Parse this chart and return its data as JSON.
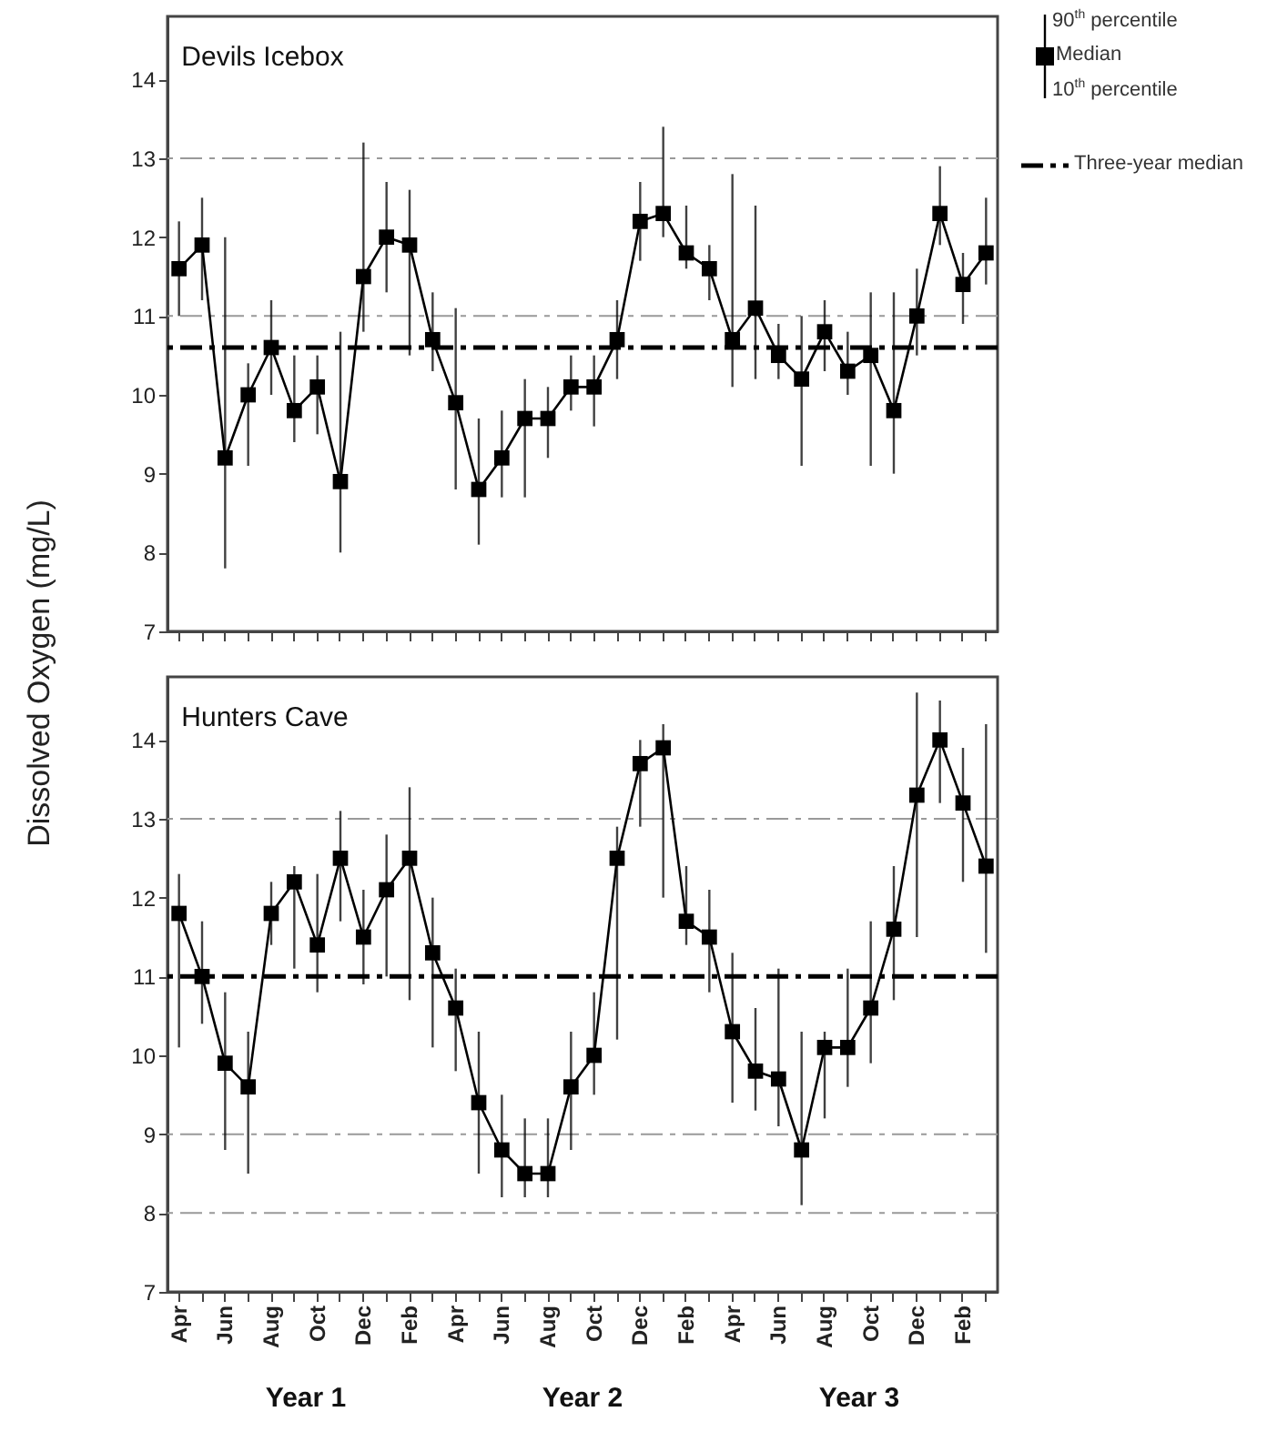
{
  "chart_data": [
    {
      "type": "line",
      "title": "Devils Icebox",
      "ylabel": "Dissolved Oxygen (mg/L)",
      "legend": "right",
      "marker": "square",
      "ylim": [
        7,
        14.8
      ],
      "yticks": [
        7,
        8,
        9,
        10,
        11,
        12,
        13,
        14
      ],
      "categories": [
        null,
        null,
        null,
        null,
        null,
        null,
        null,
        null,
        null,
        null,
        null,
        null,
        null,
        null,
        null,
        null,
        null,
        null,
        null,
        null,
        null,
        null,
        null,
        null,
        null,
        null,
        null,
        null,
        null,
        null,
        null,
        null,
        null,
        null,
        null,
        null
      ],
      "annotations": [
        "90$^{th}$ percentile",
        "10$^{th}$ percentile"
      ],
      "ref_lines": [
        {
          "axis": "y",
          "value": 13,
          "color": "#999999",
          "line_style": "dashed"
        },
        {
          "axis": "y",
          "value": 11,
          "color": "#999999",
          "line_style": "dashed"
        },
        {
          "axis": "y",
          "value": 10.6,
          "label": "Three-year median",
          "color": "#000000",
          "line_style": "dashed"
        }
      ],
      "series": [
        {
          "name": "Median",
          "color": "#000000",
          "values": [
            11.6,
            11.9,
            9.2,
            10.0,
            10.6,
            9.8,
            10.1,
            8.9,
            11.5,
            12.0,
            11.9,
            10.7,
            9.9,
            8.8,
            9.2,
            9.7,
            9.7,
            10.1,
            10.1,
            10.7,
            12.2,
            12.3,
            11.8,
            11.6,
            10.7,
            11.1,
            10.5,
            10.2,
            10.8,
            10.3,
            10.5,
            9.8,
            11.0,
            12.3,
            11.4,
            11.8
          ],
          "errors": [
            [
              11.0,
              12.2
            ],
            [
              11.2,
              12.5
            ],
            [
              7.8,
              12.0
            ],
            [
              9.1,
              10.4
            ],
            [
              10.0,
              11.2
            ],
            [
              9.4,
              10.5
            ],
            [
              9.5,
              10.5
            ],
            [
              8.0,
              10.8
            ],
            [
              10.8,
              13.2
            ],
            [
              11.3,
              12.7
            ],
            [
              10.5,
              12.6
            ],
            [
              10.3,
              11.3
            ],
            [
              8.8,
              11.1
            ],
            [
              8.1,
              9.7
            ],
            [
              8.7,
              9.8
            ],
            [
              8.7,
              10.2
            ],
            [
              9.2,
              10.1
            ],
            [
              9.8,
              10.5
            ],
            [
              9.6,
              10.5
            ],
            [
              10.2,
              11.2
            ],
            [
              11.7,
              12.7
            ],
            [
              12.0,
              13.4
            ],
            [
              11.6,
              12.4
            ],
            [
              11.2,
              11.9
            ],
            [
              10.1,
              12.8
            ],
            [
              10.2,
              12.4
            ],
            [
              10.2,
              10.9
            ],
            [
              9.1,
              11.0
            ],
            [
              10.3,
              11.2
            ],
            [
              10.0,
              10.8
            ],
            [
              9.1,
              11.3
            ],
            [
              9.0,
              11.3
            ],
            [
              10.5,
              11.6
            ],
            [
              11.9,
              12.9
            ],
            [
              10.9,
              11.8
            ],
            [
              11.4,
              12.5
            ]
          ]
        }
      ]
    },
    {
      "type": "line",
      "title": "Hunters Cave",
      "marker": "square",
      "ylim": [
        7,
        14.8
      ],
      "yticks": [
        7,
        8,
        9,
        10,
        11,
        12,
        13,
        14
      ],
      "categories": [
        "Apr",
        null,
        "Jun",
        null,
        "Aug",
        null,
        "Oct",
        null,
        "Dec",
        null,
        "Feb",
        null,
        "Apr",
        null,
        "Jun",
        null,
        "Aug",
        null,
        "Oct",
        null,
        "Dec",
        null,
        "Feb",
        null,
        "Apr",
        null,
        "Jun",
        null,
        "Aug",
        null,
        "Oct",
        null,
        "Dec",
        null,
        "Feb",
        null
      ],
      "annotations": [
        "Year 1",
        "Year 2",
        "Year 3"
      ],
      "ref_lines": [
        {
          "axis": "y",
          "value": 13,
          "color": "#999999",
          "line_style": "dashed"
        },
        {
          "axis": "y",
          "value": 9,
          "color": "#999999",
          "line_style": "dashed"
        },
        {
          "axis": "y",
          "value": 8,
          "color": "#999999",
          "line_style": "dashed"
        },
        {
          "axis": "y",
          "value": 11,
          "color": "#000000",
          "line_style": "dashed"
        }
      ],
      "series": [
        {
          "color": "#000000",
          "values": [
            11.8,
            11.0,
            9.9,
            9.6,
            11.8,
            12.2,
            11.4,
            12.5,
            11.5,
            12.1,
            12.5,
            11.3,
            10.6,
            9.4,
            8.8,
            8.5,
            8.5,
            9.6,
            10.0,
            12.5,
            13.7,
            13.9,
            11.7,
            11.5,
            10.3,
            9.8,
            9.7,
            8.8,
            10.1,
            10.1,
            10.6,
            11.6,
            13.3,
            14.0,
            13.2,
            12.4
          ],
          "errors": [
            [
              10.1,
              12.3
            ],
            [
              10.4,
              11.7
            ],
            [
              8.8,
              10.8
            ],
            [
              8.5,
              10.3
            ],
            [
              11.4,
              12.2
            ],
            [
              11.1,
              12.4
            ],
            [
              10.8,
              12.3
            ],
            [
              11.7,
              13.1
            ],
            [
              10.9,
              12.1
            ],
            [
              11.0,
              12.8
            ],
            [
              10.7,
              13.4
            ],
            [
              10.1,
              12.0
            ],
            [
              9.8,
              11.1
            ],
            [
              8.5,
              10.3
            ],
            [
              8.2,
              9.5
            ],
            [
              8.2,
              9.2
            ],
            [
              8.2,
              9.2
            ],
            [
              8.8,
              10.3
            ],
            [
              9.5,
              10.8
            ],
            [
              10.2,
              12.9
            ],
            [
              12.9,
              14.0
            ],
            [
              12.0,
              14.2
            ],
            [
              11.4,
              12.4
            ],
            [
              10.8,
              12.1
            ],
            [
              9.4,
              11.3
            ],
            [
              9.3,
              10.6
            ],
            [
              9.1,
              11.1
            ],
            [
              8.1,
              10.3
            ],
            [
              9.2,
              10.3
            ],
            [
              9.6,
              11.1
            ],
            [
              9.9,
              11.7
            ],
            [
              10.7,
              12.4
            ],
            [
              11.5,
              14.6
            ],
            [
              13.2,
              14.5
            ],
            [
              12.2,
              13.9
            ],
            [
              11.3,
              14.2
            ]
          ]
        }
      ]
    }
  ]
}
